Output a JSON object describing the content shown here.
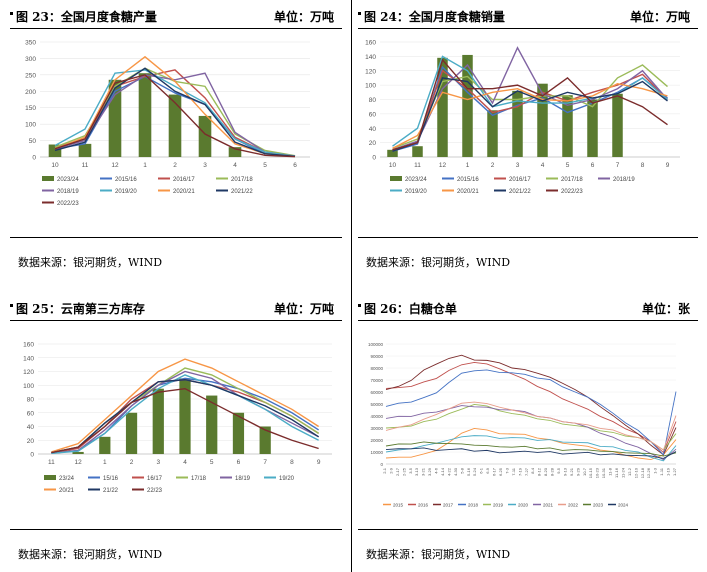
{
  "source_text": "数据来源：银河期货，WIND",
  "panels": {
    "p23": {
      "title": "图 23：全国月度食糖产量",
      "unit": "单位：万吨"
    },
    "p24": {
      "title": "图 24：全国月度食糖销量",
      "unit": "单位：万吨"
    },
    "p25": {
      "title": "图 25：云南第三方库存",
      "unit": "单位：万吨"
    },
    "p26": {
      "title": "图 26：白糖仓单",
      "unit": "单位：张"
    }
  },
  "chart_data": [
    {
      "id": "c23",
      "type": "bar+line",
      "title": "全国月度食糖产量",
      "ylim": [
        0,
        350
      ],
      "yticks": [
        0,
        50,
        100,
        150,
        200,
        250,
        300,
        350
      ],
      "categories": [
        "10",
        "11",
        "12",
        "1",
        "2",
        "3",
        "4",
        "5",
        "6"
      ],
      "bar": {
        "name": "2023/24",
        "color": "#5a7a2f",
        "values": [
          38,
          40,
          235,
          255,
          190,
          125,
          30,
          null,
          null
        ]
      },
      "series": [
        {
          "name": "2015/16",
          "color": "#4472c4",
          "values": [
            25,
            40,
            200,
            245,
            195,
            160,
            55,
            10,
            2
          ]
        },
        {
          "name": "2016/17",
          "color": "#c0504d",
          "values": [
            30,
            55,
            215,
            245,
            265,
            180,
            60,
            15,
            3
          ]
        },
        {
          "name": "2017/18",
          "color": "#9bbb59",
          "values": [
            30,
            65,
            215,
            270,
            230,
            215,
            70,
            20,
            4
          ]
        },
        {
          "name": "2018/19",
          "color": "#8064a2",
          "values": [
            25,
            50,
            190,
            250,
            235,
            255,
            75,
            15,
            3
          ]
        },
        {
          "name": "2019/20",
          "color": "#4bacc6",
          "values": [
            35,
            85,
            255,
            265,
            215,
            165,
            55,
            15,
            3
          ]
        },
        {
          "name": "2020/21",
          "color": "#f79646",
          "values": [
            25,
            60,
            235,
            305,
            230,
            130,
            40,
            10,
            2
          ]
        },
        {
          "name": "2021/22",
          "color": "#1f3864",
          "values": [
            20,
            45,
            210,
            270,
            200,
            160,
            45,
            10,
            2
          ]
        },
        {
          "name": "2022/23",
          "color": "#7b2c2c",
          "values": [
            25,
            55,
            225,
            250,
            165,
            70,
            25,
            5,
            1
          ]
        }
      ]
    },
    {
      "id": "c24",
      "type": "bar+line",
      "title": "全国月度食糖销量",
      "ylim": [
        0,
        160
      ],
      "yticks": [
        0,
        20,
        40,
        60,
        80,
        100,
        120,
        140,
        160
      ],
      "categories": [
        "10",
        "11",
        "12",
        "1",
        "2",
        "3",
        "4",
        "5",
        "6",
        "7",
        "8",
        "9"
      ],
      "bar": {
        "name": "2023/24",
        "color": "#5a7a2f",
        "values": [
          10,
          15,
          138,
          142,
          65,
          92,
          102,
          86,
          80,
          88,
          null,
          null
        ]
      },
      "series": [
        {
          "name": "2015/16",
          "color": "#4472c4",
          "values": [
            8,
            18,
            125,
            90,
            58,
            72,
            82,
            62,
            75,
            90,
            110,
            82
          ]
        },
        {
          "name": "2016/17",
          "color": "#c0504d",
          "values": [
            10,
            20,
            120,
            95,
            62,
            70,
            90,
            78,
            90,
            100,
            115,
            80
          ]
        },
        {
          "name": "2017/18",
          "color": "#9bbb59",
          "values": [
            12,
            25,
            105,
            112,
            80,
            80,
            85,
            85,
            70,
            110,
            128,
            98
          ]
        },
        {
          "name": "2018/19",
          "color": "#8064a2",
          "values": [
            10,
            22,
            95,
            128,
            75,
            152,
            88,
            72,
            80,
            95,
            120,
            80
          ]
        },
        {
          "name": "2019/20",
          "color": "#4bacc6",
          "values": [
            15,
            40,
            140,
            120,
            70,
            78,
            75,
            75,
            82,
            88,
            110,
            80
          ]
        },
        {
          "name": "2020/21",
          "color": "#f79646",
          "values": [
            12,
            30,
            90,
            80,
            90,
            95,
            80,
            78,
            85,
            102,
            95,
            85
          ]
        },
        {
          "name": "2021/22",
          "color": "#1f3864",
          "values": [
            8,
            20,
            110,
            105,
            70,
            92,
            78,
            90,
            82,
            88,
            105,
            78
          ]
        },
        {
          "name": "2022/23",
          "color": "#7b2c2c",
          "values": [
            10,
            20,
            135,
            95,
            95,
            100,
            85,
            110,
            75,
            85,
            70,
            45
          ]
        }
      ]
    },
    {
      "id": "c25",
      "type": "bar+line",
      "title": "云南第三方库存",
      "ylim": [
        0,
        160
      ],
      "yticks": [
        0,
        20,
        40,
        60,
        80,
        100,
        120,
        140,
        160
      ],
      "categories": [
        "11",
        "12",
        "1",
        "2",
        "3",
        "4",
        "5",
        "6",
        "7",
        "8",
        "9"
      ],
      "bar": {
        "name": "23/24",
        "color": "#5a7a2f",
        "values": [
          null,
          3,
          25,
          60,
          95,
          110,
          85,
          60,
          40,
          null,
          null
        ]
      },
      "series": [
        {
          "name": "15/16",
          "color": "#4472c4",
          "values": [
            2,
            5,
            30,
            70,
            100,
            110,
            105,
            95,
            80,
            60,
            35
          ]
        },
        {
          "name": "16/17",
          "color": "#c0504d",
          "values": [
            2,
            8,
            40,
            80,
            105,
            108,
            100,
            90,
            75,
            55,
            30
          ]
        },
        {
          "name": "17/18",
          "color": "#9bbb59",
          "values": [
            2,
            10,
            45,
            75,
            100,
            125,
            115,
            95,
            75,
            55,
            30
          ]
        },
        {
          "name": "18/19",
          "color": "#8064a2",
          "values": [
            1,
            5,
            35,
            70,
            100,
            120,
            110,
            85,
            65,
            45,
            25
          ]
        },
        {
          "name": "19/20",
          "color": "#4bacc6",
          "values": [
            1,
            4,
            30,
            65,
            95,
            115,
            100,
            85,
            65,
            40,
            20
          ]
        },
        {
          "name": "20/21",
          "color": "#f79646",
          "values": [
            3,
            15,
            50,
            85,
            120,
            138,
            125,
            105,
            85,
            65,
            40
          ]
        },
        {
          "name": "21/22",
          "color": "#1f3864",
          "values": [
            2,
            10,
            45,
            75,
            105,
            108,
            100,
            85,
            70,
            50,
            25
          ]
        },
        {
          "name": "22/23",
          "color": "#7b2c2c",
          "values": [
            2,
            10,
            40,
            75,
            90,
            95,
            75,
            55,
            35,
            20,
            8
          ]
        }
      ]
    },
    {
      "id": "c26",
      "type": "line",
      "title": "白糖仓单",
      "ylim": [
        0,
        100000
      ],
      "yticks": [
        "0",
        "10000",
        "20000",
        "30000",
        "40000",
        "50000",
        "60000",
        "70000",
        "80000",
        "90000",
        "100000"
      ],
      "yvals": [
        0,
        10000,
        20000,
        30000,
        40000,
        50000,
        60000,
        70000,
        80000,
        90000,
        100000
      ],
      "xticks": [
        "2-1",
        "2-9",
        "2-17",
        "2-25",
        "3-5",
        "3-13",
        "3-21",
        "3-29",
        "4-6",
        "4-14",
        "4-22",
        "4-30",
        "5-8",
        "5-16",
        "5-24",
        "6-1",
        "6-9",
        "6-17",
        "6-25",
        "7-3",
        "7-11",
        "7-19",
        "7-27",
        "8-4",
        "8-12",
        "8-20",
        "8-28",
        "9-5",
        "9-13",
        "9-21",
        "9-29",
        "10-7",
        "10-15",
        "10-23",
        "10-31",
        "11-8",
        "11-16",
        "11-24",
        "12-2",
        "12-10",
        "12-18",
        "12-26",
        "1-3",
        "1-11",
        "1-19",
        "1-27"
      ],
      "series": [
        {
          "name": "2015",
          "color": "#f79646",
          "values": [
            5000,
            5000,
            6000,
            8000,
            12000,
            18000,
            25000,
            30000,
            28000,
            26000,
            25000,
            24000,
            22000,
            20000,
            18000,
            16000,
            14000,
            12000,
            10000,
            8000,
            5000,
            3000,
            8000,
            20000
          ]
        },
        {
          "name": "2016",
          "color": "#c0504d",
          "values": [
            63000,
            63000,
            65000,
            68000,
            72000,
            78000,
            82000,
            85000,
            83000,
            80000,
            75000,
            70000,
            65000,
            60000,
            55000,
            50000,
            45000,
            40000,
            35000,
            30000,
            25000,
            18000,
            10000,
            35000
          ]
        },
        {
          "name": "2017",
          "color": "#7b2c2c",
          "values": [
            62000,
            64000,
            70000,
            78000,
            84000,
            88000,
            90000,
            87000,
            86000,
            85000,
            80000,
            78000,
            76000,
            72000,
            68000,
            62000,
            55000,
            48000,
            40000,
            33000,
            25000,
            15000,
            8000,
            30000
          ]
        },
        {
          "name": "2018",
          "color": "#4472c4",
          "values": [
            48000,
            50000,
            52000,
            55000,
            60000,
            68000,
            75000,
            78000,
            78000,
            77000,
            76000,
            74000,
            72000,
            70000,
            65000,
            60000,
            55000,
            50000,
            42000,
            35000,
            28000,
            18000,
            8000,
            60000
          ]
        },
        {
          "name": "2019",
          "color": "#9bbb59",
          "values": [
            30000,
            30000,
            32000,
            35000,
            38000,
            42000,
            45000,
            50000,
            48000,
            45000,
            42000,
            40000,
            38000,
            36000,
            34000,
            32000,
            30000,
            28000,
            26000,
            24000,
            22000,
            18000,
            12000,
            25000
          ]
        },
        {
          "name": "2020",
          "color": "#4bacc6",
          "values": [
            10000,
            11000,
            13000,
            15000,
            18000,
            20000,
            22000,
            24000,
            23000,
            22000,
            22000,
            21000,
            20000,
            20000,
            19000,
            18000,
            17000,
            15000,
            14000,
            12000,
            10000,
            5000,
            3000,
            15000
          ]
        },
        {
          "name": "2021",
          "color": "#8064a2",
          "values": [
            38000,
            39000,
            40000,
            42000,
            44000,
            46000,
            48000,
            48000,
            47000,
            46000,
            45000,
            43000,
            40000,
            38000,
            36000,
            34000,
            30000,
            26000,
            22000,
            18000,
            14000,
            8000,
            4000,
            12000
          ]
        },
        {
          "name": "2022",
          "color": "#e89d8b",
          "values": [
            28000,
            30000,
            33000,
            37000,
            42000,
            46000,
            50000,
            52000,
            50000,
            48000,
            45000,
            42000,
            40000,
            38000,
            36000,
            34000,
            32000,
            30000,
            28000,
            25000,
            22000,
            18000,
            12000,
            40000
          ]
        },
        {
          "name": "2023",
          "color": "#5a7a2f",
          "values": [
            15000,
            16000,
            17000,
            18000,
            18000,
            17000,
            16000,
            16000,
            15000,
            15000,
            14000,
            14000,
            13000,
            13000,
            12000,
            12000,
            11000,
            11000,
            10000,
            10000,
            9000,
            8000,
            7000,
            9000
          ]
        },
        {
          "name": "2024",
          "color": "#1f3864",
          "values": [
            12000,
            12000,
            13000,
            13000,
            12000,
            12000,
            12000,
            11000,
            11000,
            10000,
            10000,
            10000,
            10000,
            10000,
            9000,
            9000,
            9000,
            8000,
            8000,
            8000,
            7000,
            6000,
            5000,
            10000
          ]
        }
      ]
    }
  ]
}
